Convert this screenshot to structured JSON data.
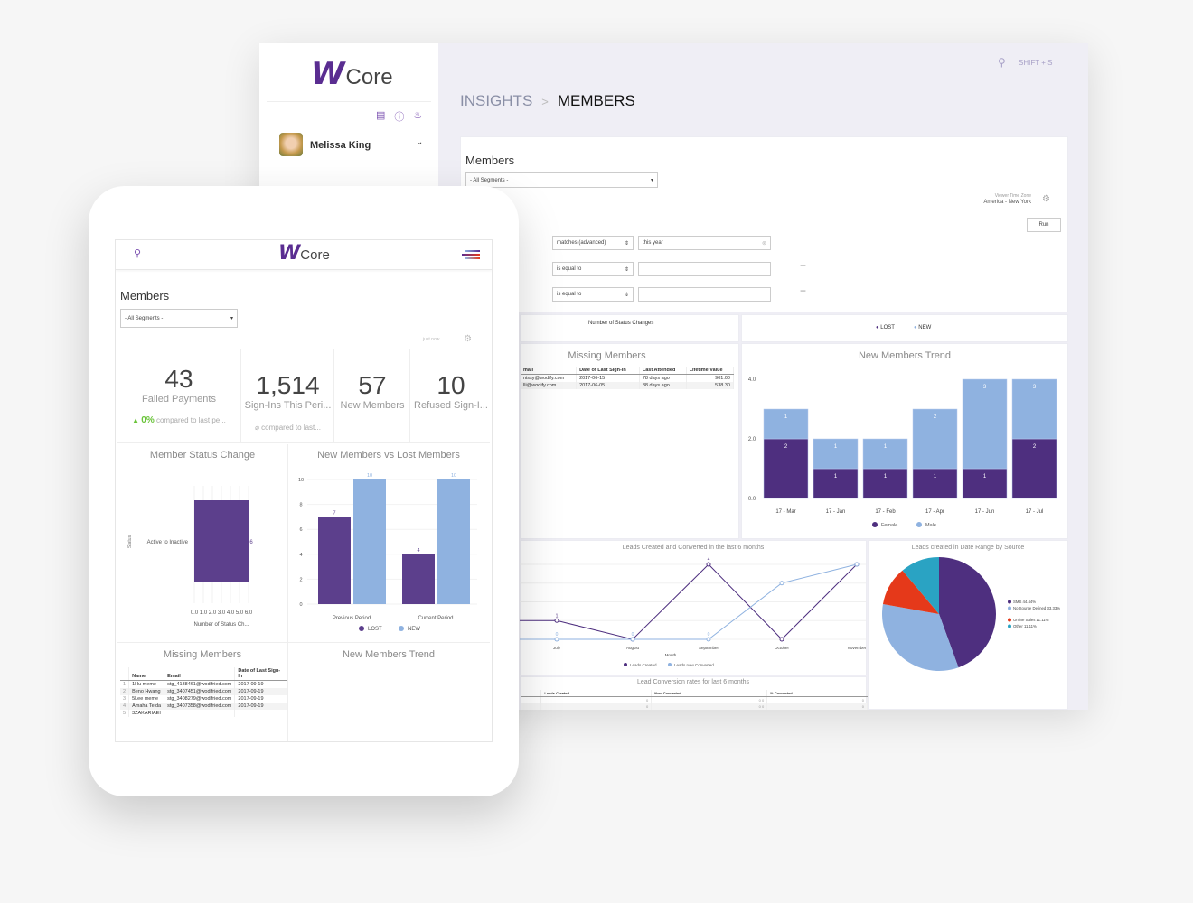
{
  "desktop": {
    "logo": {
      "mark": "W",
      "text": "Core"
    },
    "toolbar_icons": [
      "clipboard-icon",
      "help-icon",
      "bell-icon"
    ],
    "user": {
      "name": "Melissa King"
    },
    "search_shortcut": "SHIFT + S",
    "breadcrumb": {
      "parent": "INSIGHTS",
      "separator": ">",
      "current": "MEMBERS"
    },
    "page_title": "Members",
    "segment_select": "- All Segments -",
    "timezone": {
      "label": "Viewer Time Zone",
      "value": "America - New York"
    },
    "run_label": "Run",
    "filters": [
      {
        "op": "matches (advanced)",
        "value": "this year"
      },
      {
        "op": "is equal to",
        "value": ""
      },
      {
        "op": "is equal to",
        "value": ""
      }
    ],
    "partial_chart": {
      "xlabel": "Number of Status Changes",
      "legend": [
        "LOST",
        "NEW"
      ]
    },
    "missing_members": {
      "title": "Missing Members",
      "columns": [
        "mail",
        "Date of Last Sign-In",
        "Last Attended",
        "Lifetime Value"
      ],
      "rows": [
        [
          "nissy@wodify.com",
          "2017-06-15",
          "78 days ago",
          "901.00"
        ],
        [
          "lli@wodify.com",
          "2017-06-05",
          "88 days ago",
          "538.30"
        ]
      ]
    },
    "lead_conversion": {
      "title": "Lead Conversion rates for last 6 months",
      "columns": [
        "Leads Created",
        "Now Converted",
        "% Converted"
      ],
      "rows": [
        [
          "0",
          "0 0",
          "0"
        ],
        [
          "0",
          "0 0",
          "0"
        ]
      ]
    }
  },
  "tablet": {
    "logo": {
      "mark": "W",
      "text": "Core"
    },
    "page_title": "Members",
    "segment_select": "- All Segments -",
    "refreshed": "just now",
    "kpis": [
      {
        "value": "43",
        "label": "Failed Payments",
        "change": "0%",
        "compare": "compared to last pe..."
      },
      {
        "value": "1,514",
        "label": "Sign-Ins This Peri...",
        "compare": "compared to last..."
      },
      {
        "value": "57",
        "label": "New Members"
      },
      {
        "value": "10",
        "label": "Refused Sign-I..."
      }
    ],
    "missing_members": {
      "title": "Missing Members",
      "columns": [
        "Name",
        "Email",
        "Date of Last Sign-In"
      ],
      "rows": [
        [
          "1",
          "1Hu meme",
          "stg_4138461@wodifried.com",
          "2017-09-19"
        ],
        [
          "2",
          "Beno Hwang",
          "stg_3407451@wodifried.com",
          "2017-09-19"
        ],
        [
          "3",
          "5Lee meme",
          "stg_3408279@wodifried.com",
          "2017-09-19"
        ],
        [
          "4",
          "Amaha Teida",
          "stg_3407358@wodifried.com",
          "2017-09-19"
        ],
        [
          "5",
          "3ZAKARIAEI",
          "",
          ""
        ]
      ]
    },
    "trend_title": "New Members Trend"
  },
  "colors": {
    "purple": "#4e2f7f",
    "light_blue": "#8fb2e0",
    "red": "#e5391a",
    "teal": "#2aa3c3",
    "accent": "#5a2d91",
    "green": "#6ac43a"
  },
  "chart_data": [
    {
      "id": "new_members_trend",
      "type": "bar",
      "stacked": true,
      "title": "New Members Trend",
      "categories": [
        "17 - Mar",
        "17 - Jan",
        "17 - Feb",
        "17 - Apr",
        "17 - Jun",
        "17 - Jul"
      ],
      "series": [
        {
          "name": "Female",
          "values": [
            2,
            1,
            1,
            1,
            1,
            2
          ]
        },
        {
          "name": "Male",
          "values": [
            1,
            1,
            1,
            2,
            3,
            3
          ]
        }
      ],
      "ylim": [
        0,
        4
      ],
      "yticks": [
        "0.0",
        "2.0",
        "4.0"
      ],
      "legend": "bottom"
    },
    {
      "id": "leads_created_converted",
      "type": "line",
      "title": "Leads Created and Converted in the last 6 months",
      "xlabel": "Month",
      "categories": [
        "July",
        "August",
        "September",
        "October",
        "November"
      ],
      "series": [
        {
          "name": "Leads Created",
          "values": [
            1,
            0,
            4,
            0,
            4
          ]
        },
        {
          "name": "Leads now Converted",
          "values": [
            0,
            0,
            0,
            3,
            4
          ]
        }
      ],
      "ylim": [
        0,
        4
      ],
      "grid": true,
      "legend": "bottom"
    },
    {
      "id": "leads_by_source",
      "type": "pie",
      "title": "Leads created in Date Range by Source",
      "slices": [
        {
          "label": "SMS 44.44%",
          "value": 44.44
        },
        {
          "label": "No Source Defined 33.33%",
          "value": 33.33
        },
        {
          "label": "Online Sales 11.11%",
          "value": 11.11
        },
        {
          "label": "Other 11.11%",
          "value": 11.11
        }
      ],
      "legend": "right"
    },
    {
      "id": "member_status_change",
      "type": "bar",
      "orientation": "horizontal",
      "title": "Member Status Change",
      "categories": [
        "Active to Inactive"
      ],
      "values": [
        6
      ],
      "xlabel": "Number of Status Ch...",
      "ylabel": "Status",
      "xticks": [
        "0.0",
        "1.0",
        "2.0",
        "3.0",
        "4.0",
        "5.0",
        "6.0"
      ],
      "xlim": [
        0,
        6
      ]
    },
    {
      "id": "new_vs_lost",
      "type": "bar",
      "title": "New Members vs Lost Members",
      "categories": [
        "Previous Period",
        "Current Period"
      ],
      "series": [
        {
          "name": "LOST",
          "values": [
            7,
            4
          ]
        },
        {
          "name": "NEW",
          "values": [
            10,
            10
          ]
        }
      ],
      "ylim": [
        0,
        10
      ],
      "yticks": [
        "0",
        "2",
        "4",
        "6",
        "8",
        "10"
      ],
      "legend": "bottom"
    }
  ]
}
